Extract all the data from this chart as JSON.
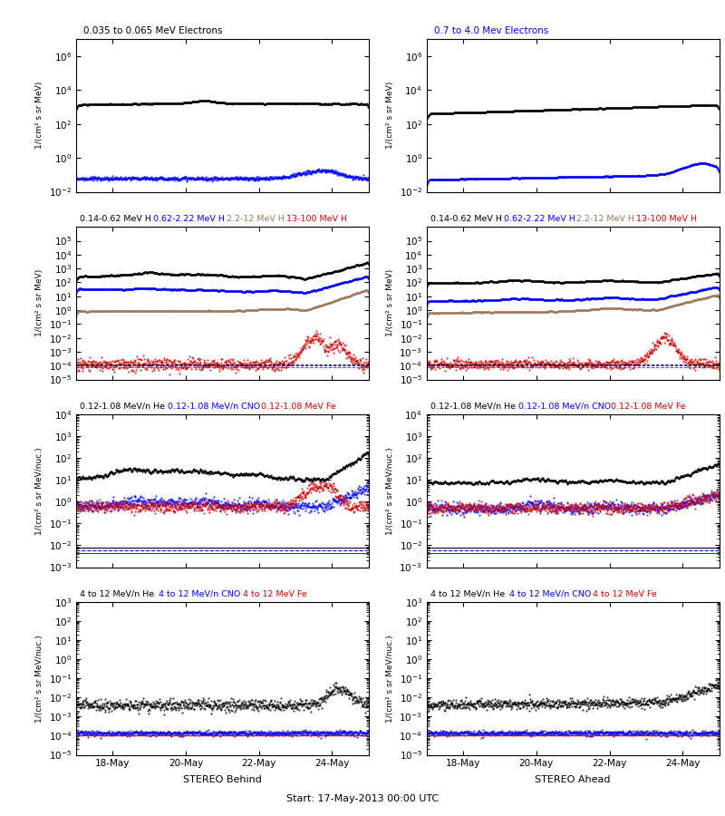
{
  "titles_row0": [
    "0.035 to 0.065 MeV Electrons",
    "0.7 to 4.0 Mev Electrons"
  ],
  "titles_row0_colors": [
    "black",
    "#0000FF"
  ],
  "titles_row1": [
    "0.14-0.62 MeV H",
    "0.62-2.22 MeV H",
    "2.2-12 MeV H",
    "13-100 MeV H"
  ],
  "titles_row1_colors": [
    "black",
    "#0000FF",
    "#A0785A",
    "#CC0000"
  ],
  "titles_row2": [
    "0.12-1.08 MeV/n He",
    "0.12-1.08 MeV/n CNO",
    "0.12-1.08 MeV Fe"
  ],
  "titles_row2_colors": [
    "black",
    "#0000FF",
    "#CC0000"
  ],
  "titles_row3": [
    "4 to 12 MeV/n He",
    "4 to 12 MeV/n CNO",
    "4 to 12 MeV Fe"
  ],
  "titles_row3_colors": [
    "black",
    "#0000FF",
    "#CC0000"
  ],
  "ylabel_elec": "1/(cm² s sr MeV)",
  "ylabel_h": "1/(cm² s sr MeV)",
  "ylabel_he": "1/(cm² s sr MeV/nuc.)",
  "ylabel_he2": "1/(cm² s sr MeV/nuc.)",
  "xtick_labels": [
    "18-May",
    "20-May",
    "22-May",
    "24-May"
  ],
  "xlabel_left": "STEREO Behind",
  "xlabel_right": "STEREO Ahead",
  "xlabel_center": "Start: 17-May-2013 00:00 UTC",
  "color_black": "#000000",
  "color_blue": "#0000FF",
  "color_red": "#CC0000",
  "color_brown": "#A0785A",
  "bg_color": "#FFFFFF",
  "n_pts": 800,
  "seed": 7,
  "row0_ylim": [
    0.01,
    10000000.0
  ],
  "row1_ylim": [
    1e-05,
    1000000.0
  ],
  "row2_ylim": [
    0.001,
    10000.0
  ],
  "row3_ylim": [
    1e-05,
    1000.0
  ]
}
